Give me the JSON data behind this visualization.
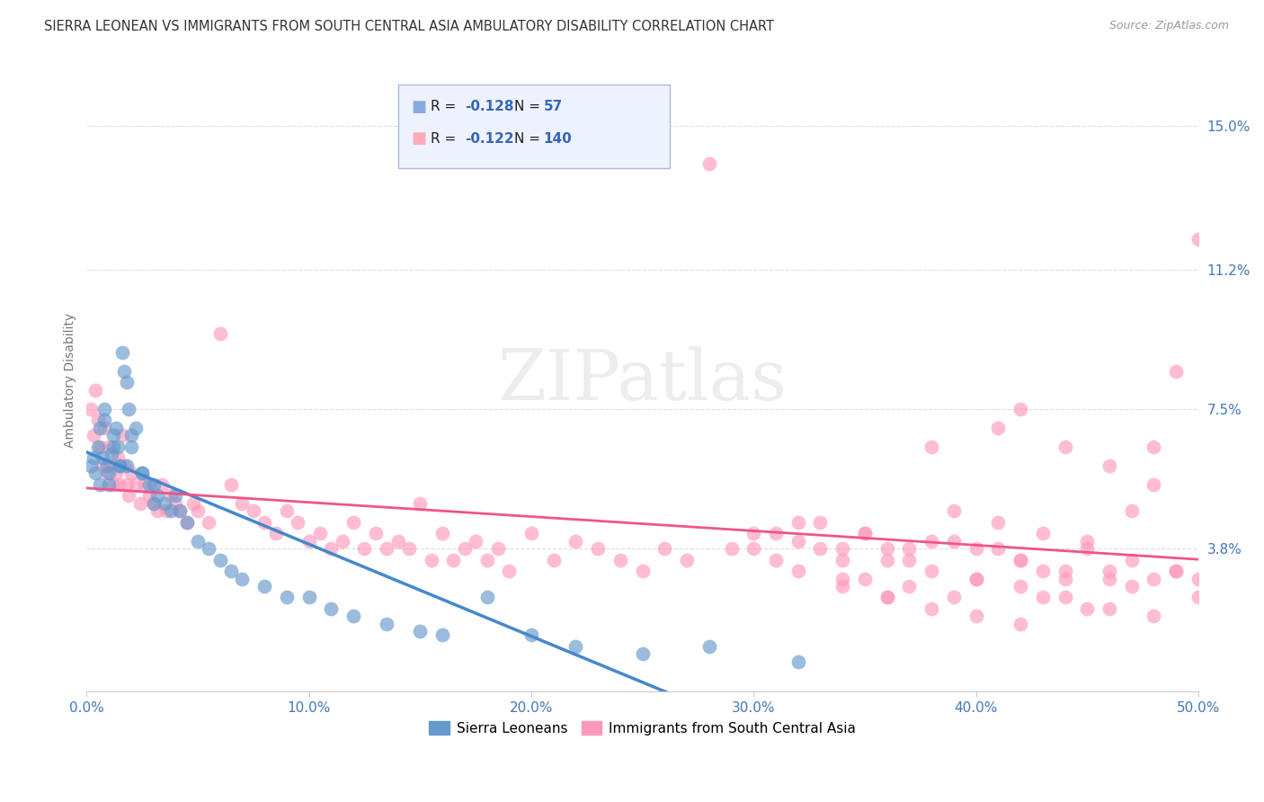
{
  "title": "SIERRA LEONEAN VS IMMIGRANTS FROM SOUTH CENTRAL ASIA AMBULATORY DISABILITY CORRELATION CHART",
  "source": "Source: ZipAtlas.com",
  "ylabel": "Ambulatory Disability",
  "watermark": "ZIPatlas",
  "series1_label": "Sierra Leoneans",
  "series1_color": "#6699CC",
  "series1_R": -0.128,
  "series1_N": 57,
  "series2_label": "Immigrants from South Central Asia",
  "series2_color": "#FF99BB",
  "series2_R": -0.122,
  "series2_N": 140,
  "xlim": [
    0.0,
    0.5
  ],
  "ylim": [
    0.0,
    0.165
  ],
  "yticks": [
    0.038,
    0.075,
    0.112,
    0.15
  ],
  "ytick_labels": [
    "3.8%",
    "7.5%",
    "11.2%",
    "15.0%"
  ],
  "xticks": [
    0.0,
    0.1,
    0.2,
    0.3,
    0.4,
    0.5
  ],
  "xtick_labels": [
    "0.0%",
    "10.0%",
    "20.0%",
    "30.0%",
    "40.0%",
    "50.0%"
  ],
  "grid_color": "#DDDDDD",
  "background_color": "#FFFFFF",
  "title_color": "#333333",
  "axis_label_color": "#777777",
  "tick_label_color": "#4477BB",
  "series1_x": [
    0.002,
    0.003,
    0.004,
    0.005,
    0.006,
    0.007,
    0.008,
    0.009,
    0.01,
    0.011,
    0.012,
    0.013,
    0.014,
    0.015,
    0.016,
    0.017,
    0.018,
    0.019,
    0.02,
    0.022,
    0.025,
    0.028,
    0.03,
    0.032,
    0.035,
    0.038,
    0.04,
    0.042,
    0.045,
    0.05,
    0.055,
    0.06,
    0.065,
    0.07,
    0.08,
    0.09,
    0.1,
    0.11,
    0.12,
    0.135,
    0.15,
    0.16,
    0.18,
    0.2,
    0.22,
    0.25,
    0.28,
    0.32,
    0.006,
    0.008,
    0.01,
    0.012,
    0.015,
    0.018,
    0.02,
    0.025,
    0.03
  ],
  "series1_y": [
    0.06,
    0.062,
    0.058,
    0.065,
    0.07,
    0.062,
    0.075,
    0.06,
    0.058,
    0.063,
    0.068,
    0.07,
    0.065,
    0.06,
    0.09,
    0.085,
    0.082,
    0.075,
    0.068,
    0.07,
    0.058,
    0.055,
    0.055,
    0.052,
    0.05,
    0.048,
    0.052,
    0.048,
    0.045,
    0.04,
    0.038,
    0.035,
    0.032,
    0.03,
    0.028,
    0.025,
    0.025,
    0.022,
    0.02,
    0.018,
    0.016,
    0.015,
    0.025,
    0.015,
    0.012,
    0.01,
    0.012,
    0.008,
    0.055,
    0.072,
    0.055,
    0.065,
    0.06,
    0.06,
    0.065,
    0.058,
    0.05
  ],
  "series2_x": [
    0.002,
    0.003,
    0.004,
    0.005,
    0.006,
    0.007,
    0.008,
    0.009,
    0.01,
    0.011,
    0.012,
    0.013,
    0.014,
    0.015,
    0.016,
    0.017,
    0.018,
    0.019,
    0.02,
    0.022,
    0.024,
    0.026,
    0.028,
    0.03,
    0.032,
    0.034,
    0.036,
    0.038,
    0.04,
    0.042,
    0.045,
    0.048,
    0.05,
    0.055,
    0.06,
    0.065,
    0.07,
    0.075,
    0.08,
    0.085,
    0.09,
    0.095,
    0.1,
    0.105,
    0.11,
    0.115,
    0.12,
    0.125,
    0.13,
    0.135,
    0.14,
    0.145,
    0.15,
    0.155,
    0.16,
    0.165,
    0.17,
    0.175,
    0.18,
    0.185,
    0.19,
    0.2,
    0.21,
    0.22,
    0.23,
    0.24,
    0.25,
    0.26,
    0.27,
    0.28,
    0.29,
    0.3,
    0.31,
    0.32,
    0.33,
    0.34,
    0.35,
    0.36,
    0.37,
    0.38,
    0.39,
    0.4,
    0.41,
    0.42,
    0.43,
    0.44,
    0.45,
    0.46,
    0.47,
    0.48,
    0.49,
    0.5,
    0.35,
    0.37,
    0.39,
    0.42,
    0.44,
    0.46,
    0.48,
    0.5,
    0.41,
    0.43,
    0.45,
    0.47,
    0.49,
    0.34,
    0.36,
    0.38,
    0.4,
    0.42,
    0.44,
    0.46,
    0.48,
    0.5,
    0.31,
    0.33,
    0.35,
    0.37,
    0.39,
    0.41,
    0.43,
    0.45,
    0.47,
    0.49,
    0.32,
    0.34,
    0.36,
    0.38,
    0.4,
    0.42,
    0.44,
    0.46,
    0.48,
    0.3,
    0.32,
    0.34,
    0.36,
    0.38,
    0.4,
    0.42
  ],
  "series2_y": [
    0.075,
    0.068,
    0.08,
    0.072,
    0.065,
    0.06,
    0.07,
    0.058,
    0.065,
    0.06,
    0.055,
    0.058,
    0.062,
    0.055,
    0.068,
    0.06,
    0.055,
    0.052,
    0.058,
    0.055,
    0.05,
    0.055,
    0.052,
    0.05,
    0.048,
    0.055,
    0.048,
    0.052,
    0.05,
    0.048,
    0.045,
    0.05,
    0.048,
    0.045,
    0.095,
    0.055,
    0.05,
    0.048,
    0.045,
    0.042,
    0.048,
    0.045,
    0.04,
    0.042,
    0.038,
    0.04,
    0.045,
    0.038,
    0.042,
    0.038,
    0.04,
    0.038,
    0.05,
    0.035,
    0.042,
    0.035,
    0.038,
    0.04,
    0.035,
    0.038,
    0.032,
    0.042,
    0.035,
    0.04,
    0.038,
    0.035,
    0.032,
    0.038,
    0.035,
    0.14,
    0.038,
    0.042,
    0.035,
    0.04,
    0.045,
    0.03,
    0.042,
    0.038,
    0.035,
    0.032,
    0.04,
    0.03,
    0.038,
    0.035,
    0.032,
    0.03,
    0.038,
    0.032,
    0.035,
    0.03,
    0.032,
    0.03,
    0.042,
    0.038,
    0.048,
    0.075,
    0.065,
    0.06,
    0.055,
    0.12,
    0.045,
    0.042,
    0.04,
    0.048,
    0.085,
    0.038,
    0.035,
    0.04,
    0.038,
    0.035,
    0.032,
    0.03,
    0.065,
    0.025,
    0.042,
    0.038,
    0.03,
    0.028,
    0.025,
    0.07,
    0.025,
    0.022,
    0.028,
    0.032,
    0.045,
    0.035,
    0.025,
    0.065,
    0.03,
    0.028,
    0.025,
    0.022,
    0.02,
    0.038,
    0.032,
    0.028,
    0.025,
    0.022,
    0.02,
    0.018
  ]
}
